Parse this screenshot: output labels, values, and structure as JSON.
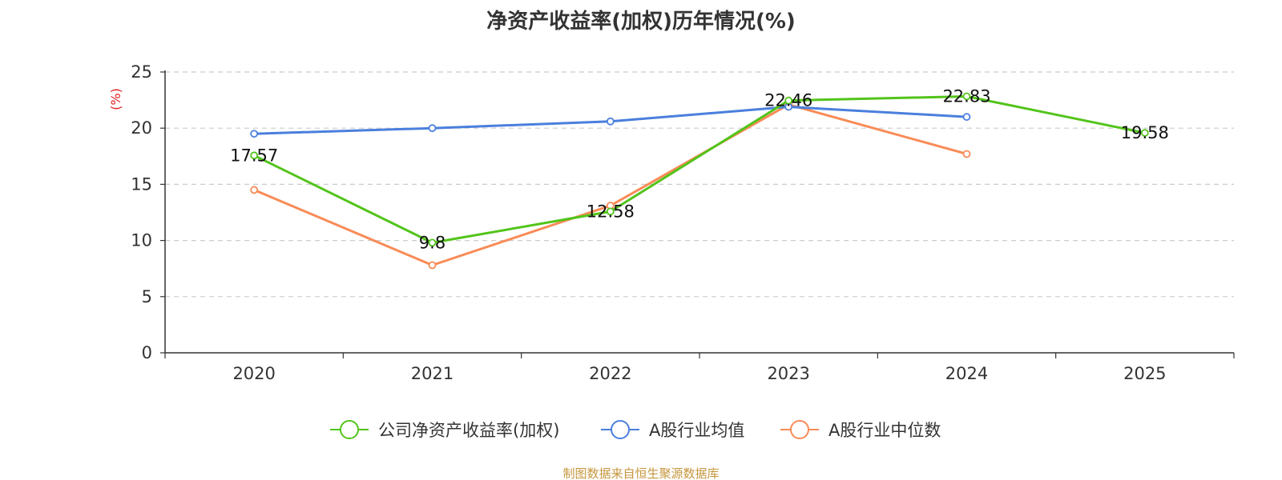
{
  "colors": {
    "company": "#52c41a",
    "industry_avg": "#4a7fdd",
    "industry_median": "#f98b57",
    "ylabel": "#e02020",
    "source": "#c5963c"
  },
  "chart_data": {
    "type": "line",
    "title": "净资产收益率(加权)历年情况(%)",
    "xlabel": "",
    "ylabel": "(%)",
    "categories": [
      "2020",
      "2021",
      "2022",
      "2023",
      "2024",
      "2025"
    ],
    "ylim": [
      0,
      25
    ],
    "yticks": [
      0,
      5,
      10,
      15,
      20,
      25
    ],
    "grid": true,
    "legend_position": "bottom",
    "series": [
      {
        "name": "公司净资产收益率(加权)",
        "color_key": "company",
        "values": [
          17.57,
          9.8,
          12.58,
          22.46,
          22.83,
          19.58
        ],
        "labels": [
          "17.57",
          "9.8",
          "12.58",
          "22.46",
          "22.83",
          "19.58"
        ]
      },
      {
        "name": "A股行业均值",
        "color_key": "industry_avg",
        "values": [
          19.5,
          20.0,
          20.6,
          21.9,
          21.0,
          null
        ],
        "labels": null
      },
      {
        "name": "A股行业中位数",
        "color_key": "industry_median",
        "values": [
          14.5,
          7.8,
          13.1,
          22.1,
          17.7,
          null
        ],
        "labels": null
      }
    ]
  },
  "source_text": "制图数据来自恒生聚源数据库"
}
